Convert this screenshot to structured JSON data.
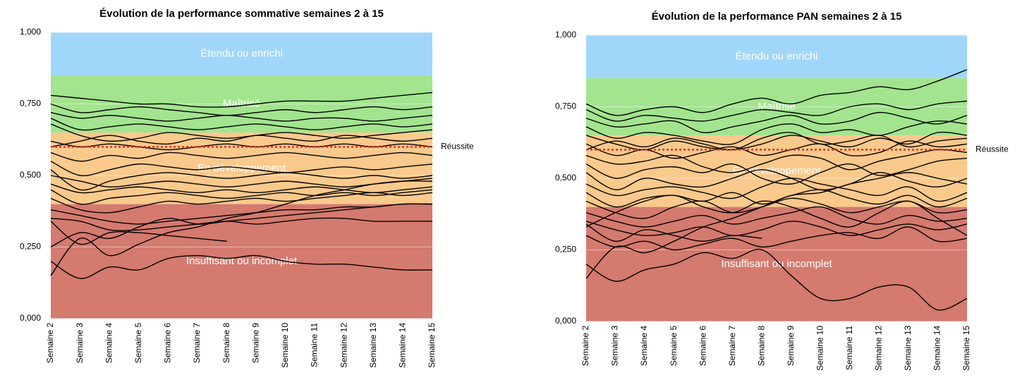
{
  "chart_data": [
    {
      "type": "line",
      "title": "Évolution de la performance sommative semaines 2 à 15",
      "categories": [
        "Semaine 2",
        "Semaine 3",
        "Semaine 4",
        "Semaine 5",
        "Semaine 6",
        "Semaine 7",
        "Semaine 8",
        "Semaine 9",
        "Semaine 10",
        "Semaine 11",
        "Semaine 12",
        "Semaine 13",
        "Semaine 14",
        "Semaine 15"
      ],
      "ylim": [
        0,
        1
      ],
      "yticks": [
        {
          "value": 0,
          "label": "0,000"
        },
        {
          "value": 0.25,
          "label": "0,250"
        },
        {
          "value": 0.5,
          "label": "0,500"
        },
        {
          "value": 0.75,
          "label": "0,750"
        },
        {
          "value": 1,
          "label": "1,000"
        }
      ],
      "grid": true,
      "bands": [
        {
          "label": "Insuffisant ou incomplet",
          "from": 0,
          "to": 0.4,
          "color": "#d47a6f"
        },
        {
          "label": "En développement",
          "from": 0.4,
          "to": 0.65,
          "color": "#fac98c"
        },
        {
          "label": "Maîtrisé",
          "from": 0.65,
          "to": 0.85,
          "color": "#a3e48f"
        },
        {
          "label": "Étendu ou enrichi",
          "from": 0.85,
          "to": 1,
          "color": "#a1d6fb"
        }
      ],
      "threshold": {
        "label": "Réussite",
        "value": 0.6,
        "color": "#e0301e"
      },
      "series": [
        {
          "color": "#000000",
          "values": [
            0.78,
            0.77,
            0.76,
            0.75,
            0.75,
            0.74,
            0.74,
            0.75,
            0.76,
            0.76,
            0.76,
            0.77,
            0.78,
            0.79
          ]
        },
        {
          "color": "#000000",
          "values": [
            0.75,
            0.72,
            0.73,
            0.74,
            0.73,
            0.72,
            0.71,
            0.72,
            0.73,
            0.72,
            0.73,
            0.74,
            0.73,
            0.74
          ]
        },
        {
          "color": "#000000",
          "values": [
            0.72,
            0.7,
            0.71,
            0.7,
            0.69,
            0.7,
            0.71,
            0.7,
            0.69,
            0.7,
            0.7,
            0.69,
            0.7,
            0.71
          ]
        },
        {
          "color": "#000000",
          "values": [
            0.7,
            0.66,
            0.67,
            0.68,
            0.67,
            0.66,
            0.67,
            0.68,
            0.67,
            0.66,
            0.67,
            0.68,
            0.67,
            0.68
          ]
        },
        {
          "color": "#000000",
          "values": [
            0.68,
            0.64,
            0.62,
            0.63,
            0.65,
            0.64,
            0.63,
            0.64,
            0.65,
            0.64,
            0.63,
            0.64,
            0.65,
            0.66
          ]
        },
        {
          "color": "#000000",
          "values": [
            0.62,
            0.6,
            0.61,
            0.6,
            0.59,
            0.6,
            0.61,
            0.6,
            0.61,
            0.6,
            0.61,
            0.6,
            0.61,
            0.6
          ]
        },
        {
          "color": "#000000",
          "values": [
            0.58,
            0.55,
            0.57,
            0.56,
            0.58,
            0.57,
            0.56,
            0.57,
            0.58,
            0.57,
            0.56,
            0.57,
            0.58,
            0.57
          ]
        },
        {
          "color": "#000000",
          "values": [
            0.55,
            0.5,
            0.52,
            0.54,
            0.53,
            0.52,
            0.53,
            0.52,
            0.51,
            0.52,
            0.53,
            0.52,
            0.53,
            0.54
          ]
        },
        {
          "color": "#000000",
          "values": [
            0.52,
            0.45,
            0.48,
            0.5,
            0.51,
            0.5,
            0.49,
            0.5,
            0.51,
            0.5,
            0.49,
            0.5,
            0.49,
            0.5
          ]
        },
        {
          "color": "#000000",
          "values": [
            0.5,
            0.48,
            0.46,
            0.47,
            0.48,
            0.47,
            0.46,
            0.47,
            0.48,
            0.47,
            0.46,
            0.47,
            0.48,
            0.49
          ]
        },
        {
          "color": "#000000",
          "values": [
            0.47,
            0.44,
            0.45,
            0.46,
            0.45,
            0.44,
            0.45,
            0.44,
            0.45,
            0.46,
            0.45,
            0.44,
            0.45,
            0.46
          ]
        },
        {
          "color": "#000000",
          "values": [
            0.45,
            0.4,
            0.42,
            0.43,
            0.44,
            0.43,
            0.42,
            0.43,
            0.44,
            0.43,
            0.44,
            0.43,
            0.44,
            0.45
          ]
        },
        {
          "color": "#000000",
          "values": [
            0.42,
            0.38,
            0.37,
            0.39,
            0.41,
            0.4,
            0.41,
            0.42,
            0.41,
            0.42,
            0.43,
            0.44,
            0.43,
            0.44
          ]
        },
        {
          "color": "#000000",
          "values": [
            0.38,
            0.36,
            0.34,
            0.33,
            0.34,
            0.35,
            0.36,
            0.37,
            0.38,
            0.38,
            0.39,
            0.39,
            0.4,
            0.4
          ]
        },
        {
          "color": "#000000",
          "values": [
            0.35,
            0.34,
            0.31,
            0.31,
            0.32,
            0.33,
            0.34,
            0.33,
            0.34,
            0.35,
            0.35,
            0.34,
            0.34,
            0.34
          ]
        },
        {
          "color": "#000000",
          "values": [
            0.25,
            0.3,
            0.28,
            0.32,
            0.35,
            0.33,
            0.34,
            0.35,
            0.36,
            0.37,
            0.38,
            0.39,
            0.4,
            0.4
          ]
        },
        {
          "color": "#000000",
          "values": [
            0.2,
            0.14,
            0.18,
            0.17,
            0.21,
            0.22,
            0.21,
            0.22,
            0.2,
            0.19,
            0.19,
            0.18,
            0.17,
            0.17
          ]
        },
        {
          "color": "#000000",
          "values": [
            0.34,
            0.26,
            0.3,
            0.3,
            0.29,
            0.28,
            0.27,
            null,
            null,
            null,
            null,
            null,
            null,
            null
          ]
        },
        {
          "color": "#000000",
          "values": [
            0.15,
            0.28,
            0.22,
            0.26,
            0.3,
            0.32,
            0.35,
            0.37,
            0.4,
            0.43,
            0.45,
            0.47,
            0.48,
            0.48
          ]
        },
        {
          "color": "#000000",
          "values": [
            0.6,
            0.62,
            0.64,
            0.62,
            0.61,
            0.63,
            0.62,
            0.64,
            0.63,
            0.62,
            0.64,
            0.63,
            0.62,
            0.63
          ]
        }
      ]
    },
    {
      "type": "line",
      "title": "Évolution de la performance PAN semaines 2 à 15",
      "categories": [
        "Semaine 2",
        "Semaine 3",
        "Semaine 4",
        "Semaine 5",
        "Semaine 6",
        "Semaine 7",
        "Semaine 8",
        "Semaine 9",
        "Semaine 10",
        "Semaine 11",
        "Semaine 12",
        "Semaine 13",
        "Semaine 14",
        "Semaine 15"
      ],
      "ylim": [
        0,
        1
      ],
      "yticks": [
        {
          "value": 0,
          "label": "0,000"
        },
        {
          "value": 0.25,
          "label": "0,250"
        },
        {
          "value": 0.5,
          "label": "0,500"
        },
        {
          "value": 0.75,
          "label": "0,750"
        },
        {
          "value": 1,
          "label": "1,000"
        }
      ],
      "grid": true,
      "bands": [
        {
          "label": "Insuffisant ou incomplet",
          "from": 0,
          "to": 0.4,
          "color": "#d47a6f"
        },
        {
          "label": "En développement",
          "from": 0.4,
          "to": 0.65,
          "color": "#fac98c"
        },
        {
          "label": "Maîtrisé",
          "from": 0.65,
          "to": 0.85,
          "color": "#a3e48f"
        },
        {
          "label": "Étendu ou enrichi",
          "from": 0.85,
          "to": 1,
          "color": "#a1d6fb"
        }
      ],
      "threshold": {
        "label": "Réussite",
        "value": 0.6,
        "color": "#e0301e"
      },
      "series": [
        {
          "color": "#000000",
          "values": [
            0.76,
            0.72,
            0.74,
            0.75,
            0.73,
            0.76,
            0.78,
            0.76,
            0.79,
            0.8,
            0.82,
            0.81,
            0.84,
            0.88
          ]
        },
        {
          "color": "#000000",
          "values": [
            0.74,
            0.7,
            0.72,
            0.71,
            0.7,
            0.72,
            0.74,
            0.73,
            0.72,
            0.75,
            0.76,
            0.74,
            0.76,
            0.77
          ]
        },
        {
          "color": "#000000",
          "values": [
            0.71,
            0.68,
            0.69,
            0.7,
            0.66,
            0.68,
            0.7,
            0.72,
            0.69,
            0.7,
            0.73,
            0.71,
            0.69,
            0.72
          ]
        },
        {
          "color": "#000000",
          "values": [
            0.68,
            0.64,
            0.66,
            0.65,
            0.63,
            0.62,
            0.67,
            0.69,
            0.66,
            0.67,
            0.65,
            0.68,
            0.7,
            0.69
          ]
        },
        {
          "color": "#000000",
          "values": [
            0.65,
            0.62,
            0.6,
            0.63,
            0.61,
            0.6,
            0.62,
            0.65,
            0.63,
            0.61,
            0.64,
            0.62,
            0.66,
            0.65
          ]
        },
        {
          "color": "#000000",
          "values": [
            0.62,
            0.58,
            0.6,
            0.57,
            0.59,
            0.61,
            0.58,
            0.6,
            0.62,
            0.58,
            0.59,
            0.63,
            0.61,
            0.62
          ]
        },
        {
          "color": "#000000",
          "values": [
            0.58,
            0.55,
            0.56,
            0.58,
            0.54,
            0.52,
            0.55,
            0.58,
            0.57,
            0.53,
            0.56,
            0.58,
            0.6,
            0.59
          ]
        },
        {
          "color": "#000000",
          "values": [
            0.55,
            0.5,
            0.53,
            0.54,
            0.52,
            0.55,
            0.5,
            0.48,
            0.52,
            0.55,
            0.51,
            0.53,
            0.56,
            0.57
          ]
        },
        {
          "color": "#000000",
          "values": [
            0.52,
            0.46,
            0.5,
            0.48,
            0.47,
            0.5,
            0.53,
            0.5,
            0.46,
            0.48,
            0.52,
            0.49,
            0.47,
            0.5
          ]
        },
        {
          "color": "#000000",
          "values": [
            0.48,
            0.44,
            0.46,
            0.47,
            0.45,
            0.43,
            0.47,
            0.5,
            0.48,
            0.46,
            0.44,
            0.47,
            0.42,
            0.45
          ]
        },
        {
          "color": "#000000",
          "values": [
            0.45,
            0.4,
            0.43,
            0.44,
            0.42,
            0.45,
            0.41,
            0.44,
            0.46,
            0.43,
            0.41,
            0.44,
            0.4,
            0.43
          ]
        },
        {
          "color": "#000000",
          "values": [
            0.42,
            0.38,
            0.36,
            0.4,
            0.42,
            0.38,
            0.4,
            0.43,
            0.41,
            0.38,
            0.4,
            0.42,
            0.38,
            0.39
          ]
        },
        {
          "color": "#000000",
          "values": [
            0.38,
            0.35,
            0.33,
            0.35,
            0.37,
            0.34,
            0.36,
            0.38,
            0.4,
            0.36,
            0.34,
            0.37,
            0.35,
            0.36
          ]
        },
        {
          "color": "#000000",
          "values": [
            0.35,
            0.32,
            0.3,
            0.31,
            0.33,
            0.3,
            0.32,
            0.35,
            0.33,
            0.3,
            0.32,
            0.34,
            0.32,
            0.34
          ]
        },
        {
          "color": "#000000",
          "values": [
            0.3,
            0.26,
            0.28,
            0.25,
            0.27,
            0.29,
            0.26,
            0.28,
            0.3,
            0.31,
            0.29,
            0.33,
            0.28,
            0.29
          ]
        },
        {
          "color": "#000000",
          "values": [
            0.2,
            0.14,
            0.18,
            0.2,
            0.24,
            0.22,
            0.25,
            0.16,
            0.08,
            0.08,
            0.12,
            0.12,
            0.04,
            0.08
          ]
        },
        {
          "color": "#000000",
          "values": [
            0.34,
            0.28,
            0.32,
            0.3,
            0.28,
            0.3,
            0.29,
            null,
            null,
            null,
            null,
            null,
            null,
            null
          ]
        },
        {
          "color": "#000000",
          "values": [
            0.15,
            0.26,
            0.24,
            0.28,
            0.33,
            0.36,
            0.4,
            0.44,
            0.45,
            0.48,
            0.5,
            0.52,
            0.5,
            0.48
          ]
        },
        {
          "color": "#000000",
          "values": [
            0.6,
            0.63,
            0.61,
            0.64,
            0.62,
            0.6,
            0.64,
            0.66,
            0.62,
            0.63,
            0.65,
            0.61,
            0.63,
            0.64
          ]
        },
        {
          "color": "#000000",
          "values": [
            0.33,
            0.38,
            0.42,
            0.44,
            0.4,
            0.38,
            0.42,
            0.4,
            0.36,
            0.33,
            0.38,
            0.42,
            0.36,
            0.3
          ]
        }
      ]
    }
  ]
}
